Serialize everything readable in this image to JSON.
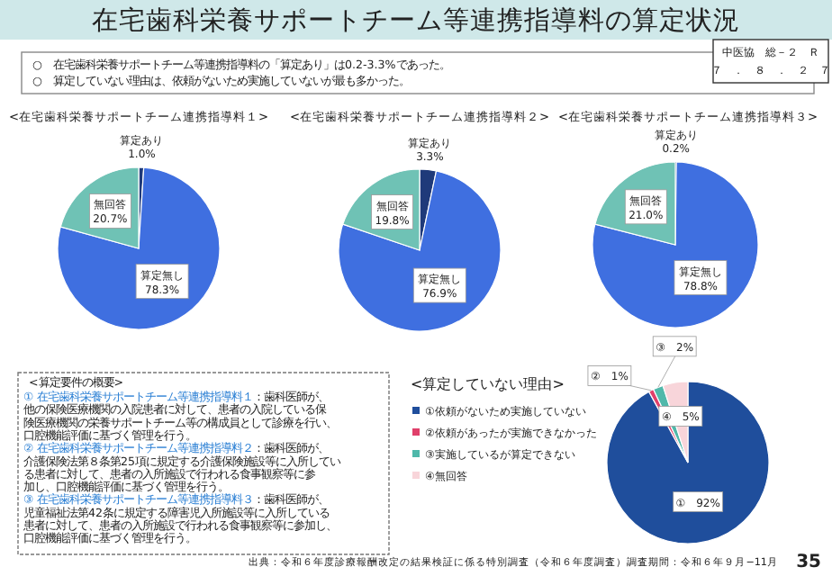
{
  "chart_data": [
    {
      "type": "other",
      "title": "在宅歯科栄養サポートチーム等連携指導料の算定状況",
      "annotations": [
        "○　在宅歯科栄養サポートチーム等連携指導料の「算定あり」は0.2-3.3%であった。",
        "○　算定していない理由は、依頼がないため実施していないが最も多かった。",
        "中医協　総－２　Ｒ",
        "７　．　８　．　２　７",
        "出典：令和６年度診療報酬改定の結果検証に係る特別調査（令和６年度調査）調査期間：令和６年９月−11月",
        "35"
      ]
    },
    {
      "type": "pie",
      "title": "<在宅歯科栄養サポートチーム連携指導料１>",
      "categories": [
        "算定あり",
        "算定無し",
        "無回答"
      ],
      "values": [
        1.0,
        78.3,
        20.7
      ],
      "colors": [
        "#1f3a7a",
        "#3f6fe0",
        "#6fc2b5"
      ],
      "value_labels": [
        "1.0%",
        "78.3%",
        "20.7%"
      ]
    },
    {
      "type": "pie",
      "title": "<在宅歯科栄養サポートチーム連携指導料２>",
      "categories": [
        "算定あり",
        "算定無し",
        "無回答"
      ],
      "values": [
        3.3,
        76.9,
        19.8
      ],
      "colors": [
        "#1f3a7a",
        "#3f6fe0",
        "#6fc2b5"
      ],
      "value_labels": [
        "3.3%",
        "76.9%",
        "19.8%"
      ]
    },
    {
      "type": "pie",
      "title": "<在宅歯科栄養サポートチーム連携指導料３>",
      "categories": [
        "算定あり",
        "算定無し",
        "無回答"
      ],
      "values": [
        0.2,
        78.8,
        21.0
      ],
      "colors": [
        "#1f3a7a",
        "#3f6fe0",
        "#6fc2b5"
      ],
      "value_labels": [
        "0.2%",
        "78.8%",
        "21.0%"
      ]
    },
    {
      "type": "pie",
      "title": "<算定していない理由>",
      "categories": [
        "①依頼がないため実施していない",
        "②依頼があったが実施できなかった",
        "③実施しているが算定できない",
        "④無回答"
      ],
      "values": [
        92,
        1,
        2,
        5
      ],
      "colors": [
        "#1f4e9c",
        "#e0406a",
        "#4fb8aa",
        "#f8d5da"
      ],
      "value_labels": [
        "①　92%",
        "②　1%",
        "③　2%",
        "④　5%"
      ],
      "legend": "left"
    },
    {
      "type": "other",
      "title": "<算定要件の概要>",
      "annotations": [
        "① 在宅歯科栄養サポートチーム等連携指導料１：歯科医師が、",
        "他の保険医療機関の入院患者に対して、患者の入院している保",
        "険医療機関の栄養サポートチーム等の構成員として診療を行い、",
        "口腔機能評価に基づく管理を行う。",
        "② 在宅歯科栄養サポートチーム等連携指導料２：歯科医師が、",
        "介護保険法第８条第25項に規定する介護保険施設等に入所してい",
        "る患者に対して、患者の入所施設で行われる食事観察等に参",
        "加し、口腔機能評価に基づく管理を行う。",
        "③ 在宅歯科栄養サポートチーム等連携指導料３：歯科医師が、",
        "児童福祉法第42条に規定する障害児入所施設等に入所している",
        "患者に対して、患者の入所施設で行われる食事観察等に参加し、",
        "口腔機能評価に基づく管理を行う。"
      ]
    }
  ]
}
